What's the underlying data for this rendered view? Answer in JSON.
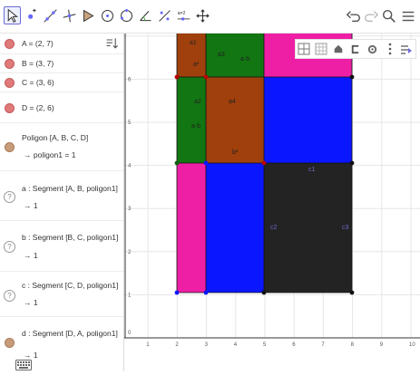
{
  "algebra": {
    "items": [
      {
        "name": "A",
        "def": "A = (2, 7)"
      },
      {
        "name": "B",
        "def": "B = (3, 7)"
      },
      {
        "name": "C",
        "def": "C = (3, 6)"
      },
      {
        "name": "D",
        "def": "D = (2, 6)"
      },
      {
        "name": "poly",
        "def": "Poligon [A, B, C, D]",
        "value": "→  poligon1 = 1"
      },
      {
        "name": "a",
        "def": "a : Segment [A, B, poligon1]",
        "value": "→  1"
      },
      {
        "name": "b",
        "def": "b : Segment [B, C, poligon1]",
        "value": "→  1"
      },
      {
        "name": "c",
        "def": "c : Segment [C, D, poligon1]",
        "value": "→  1"
      },
      {
        "name": "d",
        "def": "d : Segment [D, A, poligon1]",
        "value": "→  1"
      }
    ]
  },
  "graph": {
    "x_ticks": [
      "1",
      "2",
      "3",
      "4",
      "5",
      "6",
      "7",
      "8",
      "9",
      "10"
    ],
    "y_ticks": [
      "1",
      "2",
      "3",
      "4",
      "5",
      "6"
    ],
    "origin": "0",
    "region_labels": {
      "a1": "a1",
      "a2": "a²",
      "a3": "a3",
      "ab_top": "a·b",
      "a4": "a2",
      "ab_left": "a·b",
      "s4": "a4",
      "b2": "b²",
      "c1": "c1",
      "c2": "c2",
      "c3": "c3"
    },
    "colors": {
      "pink": "#ee1fa5",
      "green": "#127612",
      "brown": "#a0400c",
      "blue": "#0a16ff",
      "black": "#232323",
      "grid": "#e6e6e6"
    }
  },
  "icons": {
    "undo": "undo-icon",
    "redo": "redo-icon",
    "search": "search-icon",
    "menu": "menu-icon"
  }
}
